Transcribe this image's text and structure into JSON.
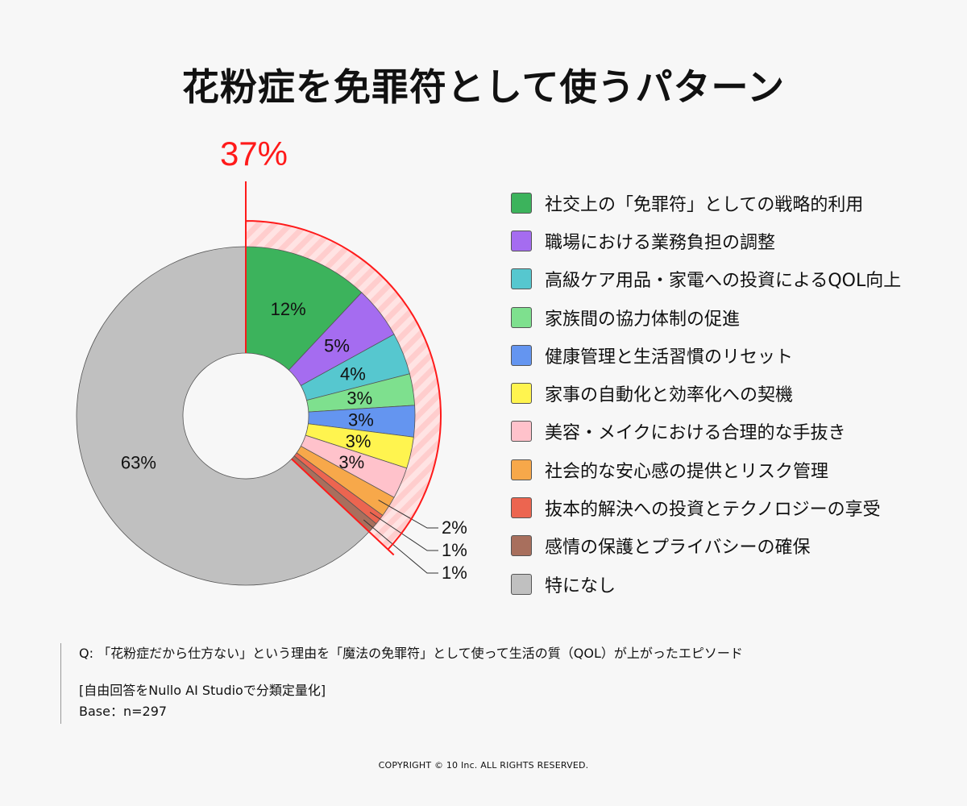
{
  "title": "花粉症を免罪符として使うパターン",
  "chart_data": {
    "type": "pie",
    "variant": "donut",
    "title": "花粉症を免罪符として使うパターン",
    "start": "12 o'clock, clockwise",
    "categories": [
      "社交上の「免罪符」としての戦略的利用",
      "職場における業務負担の調整",
      "高級ケア用品・家電への投資によるQOL向上",
      "家族間の協力体制の促進",
      "健康管理と生活習慣のリセット",
      "家事の自動化と効率化への契機",
      "美容・メイクにおける合理的な手抜き",
      "社会的な安心感の提供とリスク管理",
      "抜本的解決への投資とテクノロジーの享受",
      "感情の保護とプライバシーの確保",
      "特になし"
    ],
    "values": [
      12,
      5,
      4,
      3,
      3,
      3,
      3,
      2,
      1,
      1,
      63
    ],
    "data_labels": [
      "12%",
      "5%",
      "4%",
      "3%",
      "3%",
      "3%",
      "3%",
      "2%",
      "1%",
      "1%",
      "63%"
    ],
    "colors": [
      "#3cb35c",
      "#a56cf0",
      "#56c7cf",
      "#7ee08e",
      "#6495f0",
      "#fff44f",
      "#ffc2cb",
      "#f7a84a",
      "#ec6550",
      "#a86f5d",
      "#c0c0c0"
    ],
    "highlight": {
      "label": "37%",
      "value": 37,
      "covers_first_n": 10,
      "color": "#ff1a1a"
    },
    "legend_position": "right"
  },
  "notes": {
    "question": "Q: 「花粉症だから仕方ない」という理由を「魔法の免罪符」として使って生活の質（QOL）が上がったエピソード",
    "method": "[自由回答をNullo AI Studioで分類定量化]",
    "base": "Base：n=297"
  },
  "copyright": "COPYRIGHT © 10 Inc. ALL RIGHTS RESERVED."
}
